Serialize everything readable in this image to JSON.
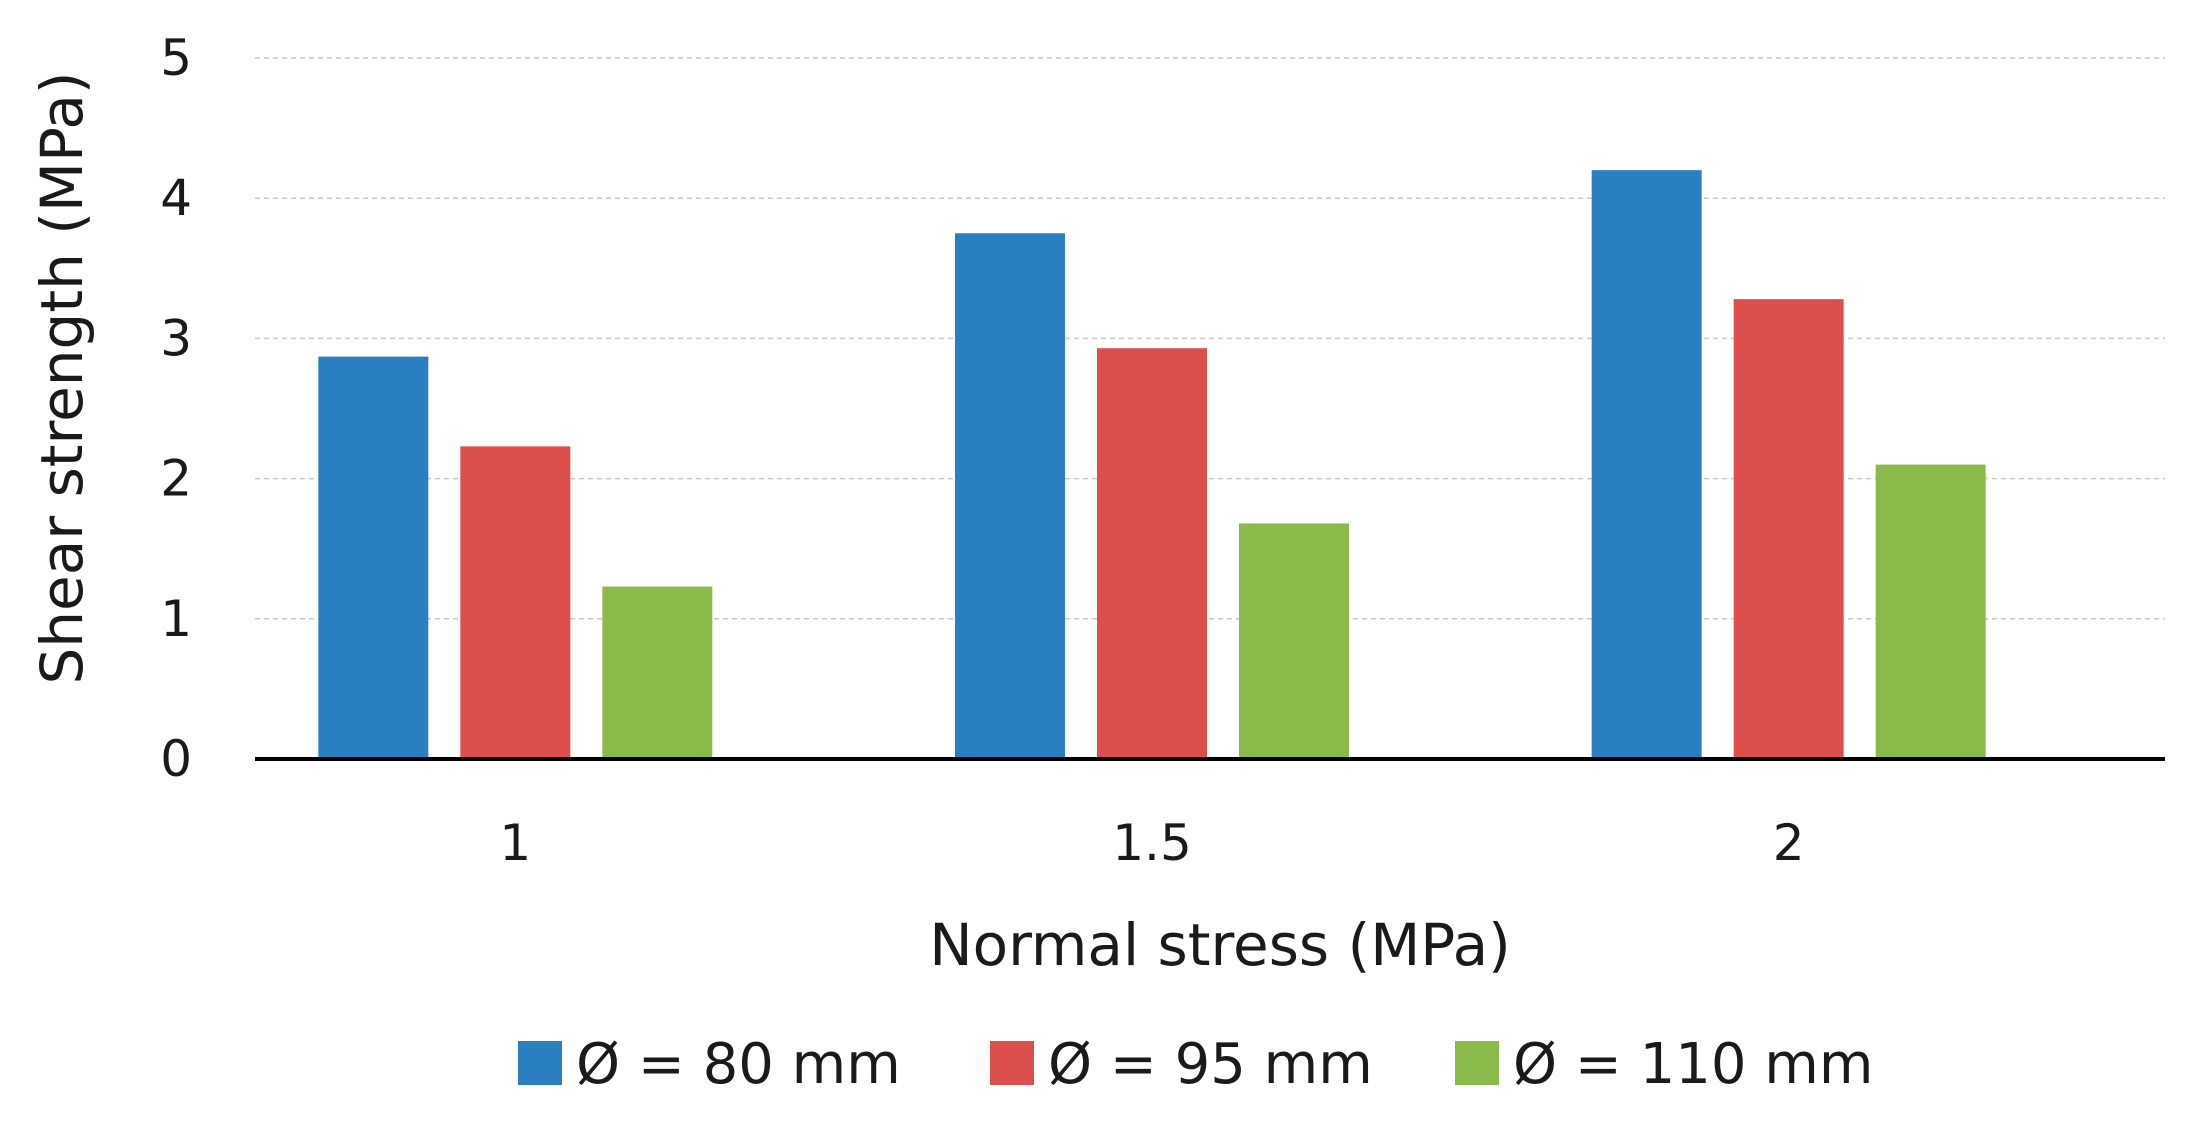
{
  "chart_data": {
    "type": "bar",
    "title": "",
    "xlabel": "Normal stress (MPa)",
    "ylabel": "Shear strength (MPa)",
    "categories": [
      "1",
      "1.5",
      "2"
    ],
    "ylim": [
      0,
      5
    ],
    "yticks": [
      "0",
      "1",
      "2",
      "3",
      "4",
      "5"
    ],
    "grid": true,
    "legend_position": "bottom",
    "series": [
      {
        "name": "Ø = 80 mm",
        "color": "#2a7fc0",
        "values": [
          2.87,
          3.75,
          4.2
        ]
      },
      {
        "name": "Ø = 95 mm",
        "color": "#dd4f4c",
        "values": [
          2.23,
          2.93,
          3.28
        ]
      },
      {
        "name": "Ø = 110 mm",
        "color": "#8aba4a",
        "values": [
          1.23,
          1.68,
          2.1
        ]
      }
    ]
  }
}
